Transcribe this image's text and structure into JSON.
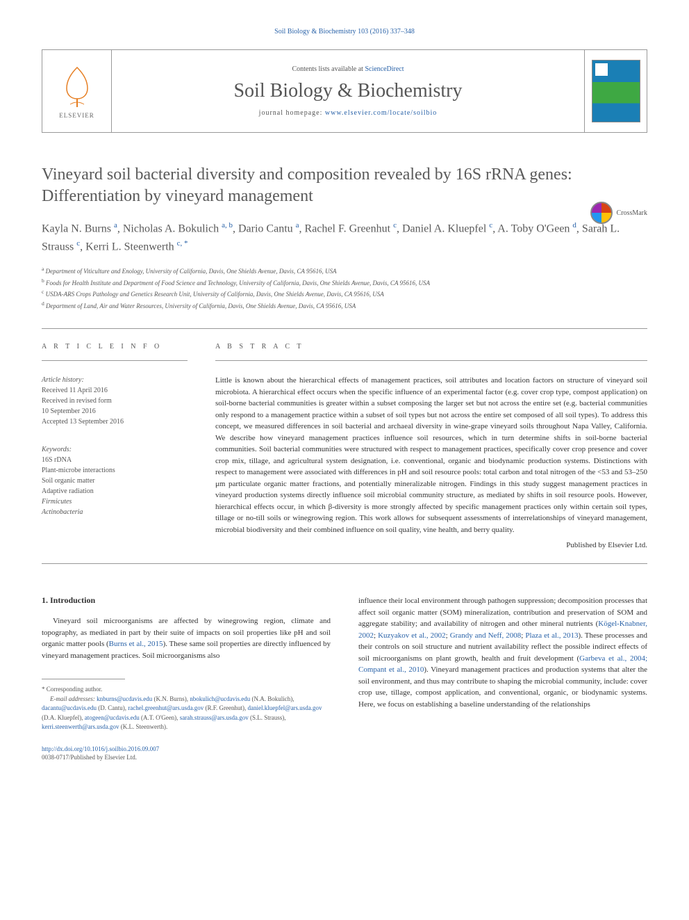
{
  "top_citation": "Soil Biology & Biochemistry 103 (2016) 337–348",
  "header": {
    "contents_pre": "Contents lists available at ",
    "contents_link": "ScienceDirect",
    "journal_name": "Soil Biology & Biochemistry",
    "homepage_pre": "journal homepage: ",
    "homepage_link": "www.elsevier.com/locate/soilbio",
    "elsevier_label": "ELSEVIER"
  },
  "crossmark_label": "CrossMark",
  "title": "Vineyard soil bacterial diversity and composition revealed by 16S rRNA genes: Differentiation by vineyard management",
  "authors_html": "Kayla N. Burns <sup>a</sup>, Nicholas A. Bokulich <sup>a, b</sup>, Dario Cantu <sup>a</sup>, Rachel F. Greenhut <sup>c</sup>, Daniel A. Kluepfel <sup>c</sup>, A. Toby O'Geen <sup>d</sup>, Sarah L. Strauss <sup>c</sup>, Kerri L. Steenwerth <sup>c, *</sup>",
  "affiliations": [
    {
      "sup": "a",
      "text": "Department of Viticulture and Enology, University of California, Davis, One Shields Avenue, Davis, CA 95616, USA"
    },
    {
      "sup": "b",
      "text": "Foods for Health Institute and Department of Food Science and Technology, University of California, Davis, One Shields Avenue, Davis, CA 95616, USA"
    },
    {
      "sup": "c",
      "text": "USDA-ARS Crops Pathology and Genetics Research Unit, University of California, Davis, One Shields Avenue, Davis, CA 95616, USA"
    },
    {
      "sup": "d",
      "text": "Department of Land, Air and Water Resources, University of California, Davis, One Shields Avenue, Davis, CA 95616, USA"
    }
  ],
  "article_info_head": "A R T I C L E   I N F O",
  "abstract_head": "A B S T R A C T",
  "history": {
    "label": "Article history:",
    "received": "Received 11 April 2016",
    "revised1": "Received in revised form",
    "revised2": "10 September 2016",
    "accepted": "Accepted 13 September 2016"
  },
  "keywords_label": "Keywords:",
  "keywords": [
    "16S rDNA",
    "Plant-microbe interactions",
    "Soil organic matter",
    "Adaptive radiation",
    "Firmicutes",
    "Actinobacteria"
  ],
  "abstract": "Little is known about the hierarchical effects of management practices, soil attributes and location factors on structure of vineyard soil microbiota. A hierarchical effect occurs when the specific influence of an experimental factor (e.g. cover crop type, compost application) on soil-borne bacterial communities is greater within a subset composing the larger set but not across the entire set (e.g. bacterial communities only respond to a management practice within a subset of soil types but not across the entire set composed of all soil types). To address this concept, we measured differences in soil bacterial and archaeal diversity in wine-grape vineyard soils throughout Napa Valley, California. We describe how vineyard management practices influence soil resources, which in turn determine shifts in soil-borne bacterial communities. Soil bacterial communities were structured with respect to management practices, specifically cover crop presence and cover crop mix, tillage, and agricultural system designation, i.e. conventional, organic and biodynamic production systems. Distinctions with respect to management were associated with differences in pH and soil resource pools: total carbon and total nitrogen of the <53 and 53–250 μm particulate organic matter fractions, and potentially mineralizable nitrogen. Findings in this study suggest management practices in vineyard production systems directly influence soil microbial community structure, as mediated by shifts in soil resource pools. However, hierarchical effects occur, in which β-diversity is more strongly affected by specific management practices only within certain soil types, tillage or no-till soils or winegrowing region. This work allows for subsequent assessments of interrelationships of vineyard management, microbial biodiversity and their combined influence on soil quality, vine health, and berry quality.",
  "publisher_line": "Published by Elsevier Ltd.",
  "intro_head": "1. Introduction",
  "intro_left": "Vineyard soil microorganisms are affected by winegrowing region, climate and topography, as mediated in part by their suite of impacts on soil properties like pH and soil organic matter pools (",
  "intro_left_cite": "Burns et al., 2015",
  "intro_left_after": "). These same soil properties are directly influenced by vineyard management practices. Soil microorganisms also",
  "intro_right_1": "influence their local environment through pathogen suppression; decomposition processes that affect soil organic matter (SOM) mineralization, contribution and preservation of SOM and aggregate stability; and availability of nitrogen and other mineral nutrients (",
  "cites_r1": "Kögel-Knabner, 2002",
  "cites_r2": "Kuzyakov et al., 2002",
  "cites_r3": "Grandy and Neff, 2008",
  "cites_r4": "Plaza et al., 2013",
  "intro_right_2": "). These processes and their controls on soil structure and nutrient availability reflect the possible indirect effects of soil microorganisms on plant growth, health and fruit development (",
  "cites_r5": "Garbeva et al., 2004; Compant et al., 2010",
  "intro_right_3": "). Vineyard management practices and production systems that alter the soil environment, and thus may contribute to shaping the microbial community, include: cover crop use, tillage, compost application, and conventional, organic, or biodynamic systems. Here, we focus on establishing a baseline understanding of the relationships",
  "corr_label": "* Corresponding author.",
  "emails_label": "E-mail addresses:",
  "emails": [
    {
      "addr": "knburns@ucdavis.edu",
      "who": "(K.N. Burns)"
    },
    {
      "addr": "nbokulich@ucdavis.edu",
      "who": "(N.A. Bokulich)"
    },
    {
      "addr": "dacantu@ucdavis.edu",
      "who": "(D. Cantu)"
    },
    {
      "addr": "rachel.greenhut@ars.usda.gov",
      "who": "(R.F. Greenhut)"
    },
    {
      "addr": "daniel.kluepfel@ars.usda.gov",
      "who": "(D.A. Kluepfel)"
    },
    {
      "addr": "atogeen@ucdavis.edu",
      "who": "(A.T. O'Geen)"
    },
    {
      "addr": "sarah.strauss@ars.usda.gov",
      "who": "(S.L. Strauss)"
    },
    {
      "addr": "kerri.steenwerth@ars.usda.gov",
      "who": "(K.L. Steenwerth)"
    }
  ],
  "doi": "http://dx.doi.org/10.1016/j.soilbio.2016.09.007",
  "issn_line": "0038-0717/Published by Elsevier Ltd.",
  "colors": {
    "link": "#2962a8",
    "text_gray": "#5a5a5a",
    "rule": "#999999"
  }
}
